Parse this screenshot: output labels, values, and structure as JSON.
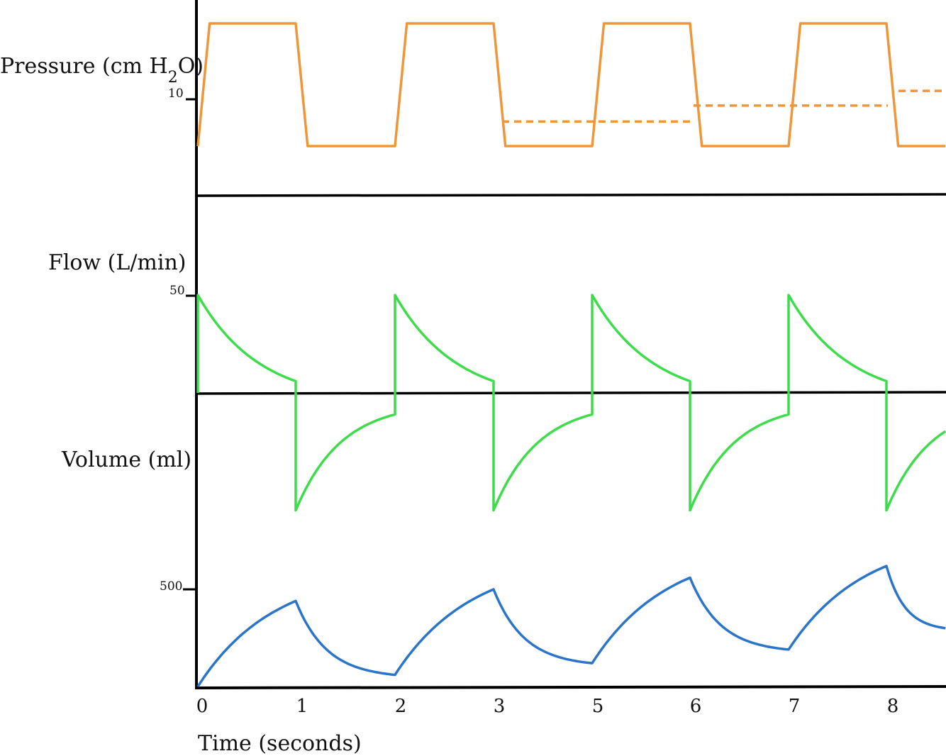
{
  "chart_data": {
    "type": "line",
    "x": {
      "title": "Time (seconds)",
      "tick_labels": [
        "0",
        "1",
        "2",
        "3",
        "5",
        "6",
        "7",
        "8"
      ]
    },
    "panels": [
      {
        "id": "pressure",
        "label_main": "Pressure (cm H",
        "label_sub": "2",
        "label_end": "O)",
        "tick_label": "10",
        "color": "#f0963a",
        "breath_starts": [
          0,
          2,
          4,
          6
        ],
        "inspiratory_end": [
          1,
          3,
          5,
          7
        ],
        "series": [
          {
            "style": "solid",
            "high": 15,
            "low": 5,
            "rise_s": 0.12,
            "fall_s": 0.12
          },
          {
            "style": "dashed",
            "segments": [
              {
                "x0": 3.0,
                "x1": 5.0,
                "y": 7.0
              },
              {
                "x0": 5.0,
                "y0": 7.0,
                "x1": 7.0,
                "y": 8.3
              },
              {
                "x0": 7.0,
                "x1": 7.6,
                "y": 9.5
              }
            ]
          }
        ]
      },
      {
        "id": "flow",
        "label": "Flow (L/min)",
        "tick_label": "50",
        "color": "#3ddc4a",
        "breath_starts": [
          0,
          2,
          4,
          6
        ],
        "inspiratory_end": [
          1,
          3,
          5,
          7
        ],
        "series": [
          {
            "inspiratory_peak": 50,
            "inspiratory_end_value": 6,
            "expiratory_trough": -60,
            "expiratory_end_value": -11
          }
        ]
      },
      {
        "id": "volume",
        "label": "Volume (ml)",
        "tick_label": "500",
        "color": "#2a74c9",
        "series": [
          {
            "points": [
              {
                "t": 0.0,
                "v": 0
              },
              {
                "t": 1.0,
                "v": 440
              },
              {
                "t": 2.0,
                "v": 60
              },
              {
                "t": 3.0,
                "v": 500
              },
              {
                "t": 4.0,
                "v": 120
              },
              {
                "t": 5.0,
                "v": 560
              },
              {
                "t": 6.0,
                "v": 190
              },
              {
                "t": 7.0,
                "v": 620
              },
              {
                "t": 7.6,
                "v": 300
              }
            ]
          }
        ]
      }
    ]
  }
}
